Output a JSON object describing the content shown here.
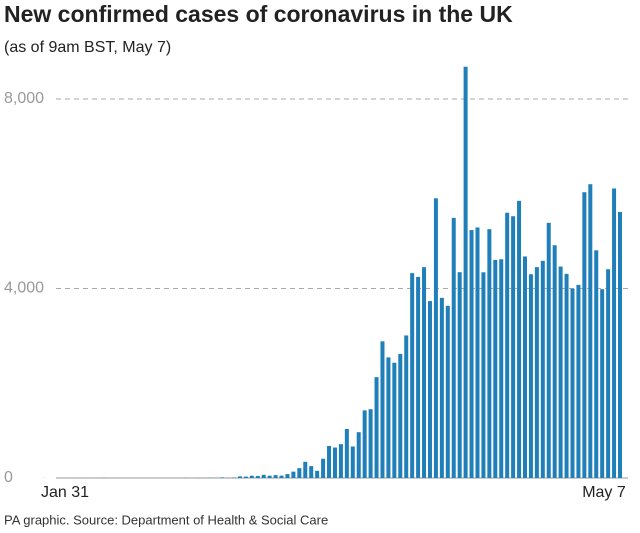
{
  "chart_data": {
    "type": "bar",
    "title": "New confirmed cases of coronavirus in the UK",
    "subtitle": "(as of 9am BST, May 7)",
    "source": "PA graphic. Source: Department of Health & Social Care",
    "color": "#1f7fb9",
    "grid": true,
    "ylim": [
      0,
      9000
    ],
    "yticks": [
      0,
      {
        "value": 4000,
        "label": "4,000"
      },
      {
        "value": 8000,
        "label": "8,000"
      }
    ],
    "categories": [
      "Jan 31",
      null,
      null,
      null,
      null,
      null,
      null,
      null,
      null,
      null,
      null,
      null,
      null,
      null,
      null,
      null,
      null,
      null,
      null,
      null,
      null,
      null,
      null,
      null,
      null,
      null,
      null,
      null,
      null,
      null,
      null,
      null,
      null,
      null,
      null,
      null,
      null,
      null,
      null,
      null,
      null,
      null,
      null,
      null,
      null,
      null,
      null,
      null,
      null,
      null,
      null,
      null,
      null,
      null,
      null,
      null,
      null,
      null,
      null,
      null,
      null,
      null,
      null,
      null,
      null,
      null,
      null,
      null,
      null,
      null,
      null,
      null,
      null,
      null,
      null,
      null,
      null,
      null,
      null,
      null,
      null,
      null,
      null,
      null,
      null,
      null,
      null,
      null,
      null,
      null,
      null,
      null,
      null,
      null,
      null,
      null,
      null,
      "May 7"
    ],
    "values": [
      2,
      0,
      0,
      0,
      0,
      0,
      1,
      0,
      0,
      1,
      4,
      0,
      1,
      0,
      0,
      0,
      0,
      0,
      0,
      0,
      0,
      0,
      0,
      0,
      4,
      0,
      3,
      2,
      5,
      3,
      13,
      4,
      11,
      34,
      30,
      48,
      43,
      67,
      48,
      61,
      50,
      83,
      134,
      208,
      342,
      251,
      152,
      407,
      676,
      643,
      714,
      1035,
      665,
      967,
      1427,
      1452,
      2129,
      2885,
      2546,
      2433,
      2619,
      3009,
      4324,
      4244,
      4450,
      3735,
      5903,
      3802,
      3634,
      5491,
      4344,
      8681,
      5233,
      5288,
      4342,
      5252,
      4603,
      4617,
      5599,
      5525,
      5850,
      4676,
      4301,
      4451,
      4583,
      5386,
      4913,
      4463,
      4309,
      3996,
      4076,
      6032,
      6201,
      4806,
      3985,
      4406,
      6111,
      5614
    ]
  }
}
